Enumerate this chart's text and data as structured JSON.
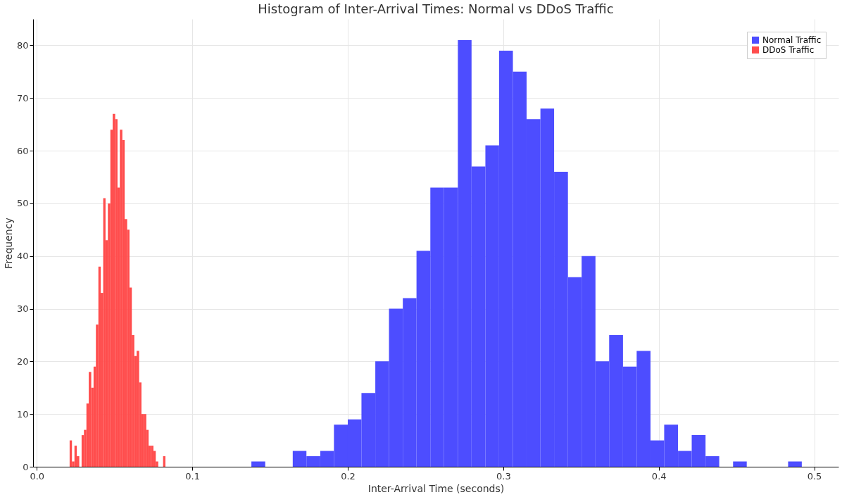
{
  "chart_data": {
    "type": "histogram",
    "title": "Histogram of Inter-Arrival Times: Normal vs DDoS Traffic",
    "xlabel": "Inter-Arrival Time (seconds)",
    "ylabel": "Frequency",
    "bins": [
      0.0211,
      0.0226,
      0.0242,
      0.0257,
      0.0273,
      0.0288,
      0.0303,
      0.0319,
      0.0334,
      0.035,
      0.0365,
      0.038,
      0.0396,
      0.0411,
      0.0427,
      0.0442,
      0.0457,
      0.0473,
      0.0488,
      0.0504,
      0.0519,
      0.0534,
      0.055,
      0.0565,
      0.0581,
      0.0596,
      0.0611,
      0.0627,
      0.0642,
      0.0658,
      0.0673,
      0.0688,
      0.0704,
      0.0719,
      0.0735,
      0.075,
      0.0765,
      0.0781,
      0.0812,
      0.0827,
      0.138,
      0.1469,
      0.1646,
      0.1734,
      0.1823,
      0.1911,
      0.2,
      0.2088,
      0.2177,
      0.2265,
      0.2354,
      0.2442,
      0.2531,
      0.2619,
      0.2708,
      0.2796,
      0.2885,
      0.2973,
      0.3062,
      0.315,
      0.3239,
      0.3327,
      0.3416,
      0.3504,
      0.3593,
      0.3681,
      0.377,
      0.3858,
      0.3947,
      0.4035,
      0.4124,
      0.4212,
      0.4301,
      0.4389,
      0.4478,
      0.4566,
      0.4832,
      0.492
    ],
    "series": [
      {
        "name": "Normal Traffic",
        "color": "#4d4dff",
        "values": [
          null,
          null,
          null,
          null,
          null,
          null,
          null,
          null,
          null,
          null,
          null,
          null,
          null,
          null,
          null,
          null,
          null,
          null,
          null,
          null,
          null,
          null,
          null,
          null,
          null,
          null,
          null,
          null,
          null,
          null,
          null,
          null,
          null,
          null,
          null,
          null,
          null,
          null,
          null,
          null,
          1,
          0,
          3,
          2,
          3,
          8,
          9,
          14,
          20,
          30,
          32,
          41,
          53,
          53,
          81,
          57,
          61,
          79,
          75,
          66,
          68,
          56,
          36,
          40,
          20,
          25,
          19,
          22,
          5,
          8,
          3,
          6,
          2,
          0,
          1,
          0,
          1
        ]
      },
      {
        "name": "DDoS Traffic",
        "color": "#ff4d4d",
        "values": [
          5,
          1,
          4,
          2,
          0,
          6,
          7,
          12,
          18,
          15,
          19,
          27,
          38,
          33,
          51,
          43,
          50,
          64,
          67,
          66,
          53,
          64,
          62,
          47,
          45,
          34,
          25,
          21,
          22,
          16,
          10,
          10,
          7,
          4,
          4,
          3,
          1,
          0,
          2,
          null,
          null,
          null,
          null,
          null,
          null,
          null,
          null,
          null,
          null,
          null,
          null,
          null,
          null,
          null,
          null,
          null,
          null,
          null,
          null,
          null,
          null,
          null,
          null,
          null,
          null,
          null,
          null,
          null,
          null,
          null,
          null,
          null,
          null,
          null,
          null,
          null,
          null
        ]
      }
    ],
    "xlim": [
      -0.0024,
      0.5156
    ],
    "ylim": [
      0,
      85
    ],
    "xticks": [
      {
        "value": 0,
        "label": "0.0"
      },
      0.1,
      0.2,
      0.3,
      0.4,
      0.5
    ],
    "yticks": [
      0,
      10,
      20,
      30,
      40,
      50,
      60,
      70,
      80
    ],
    "grid": true,
    "legend": "top right"
  }
}
